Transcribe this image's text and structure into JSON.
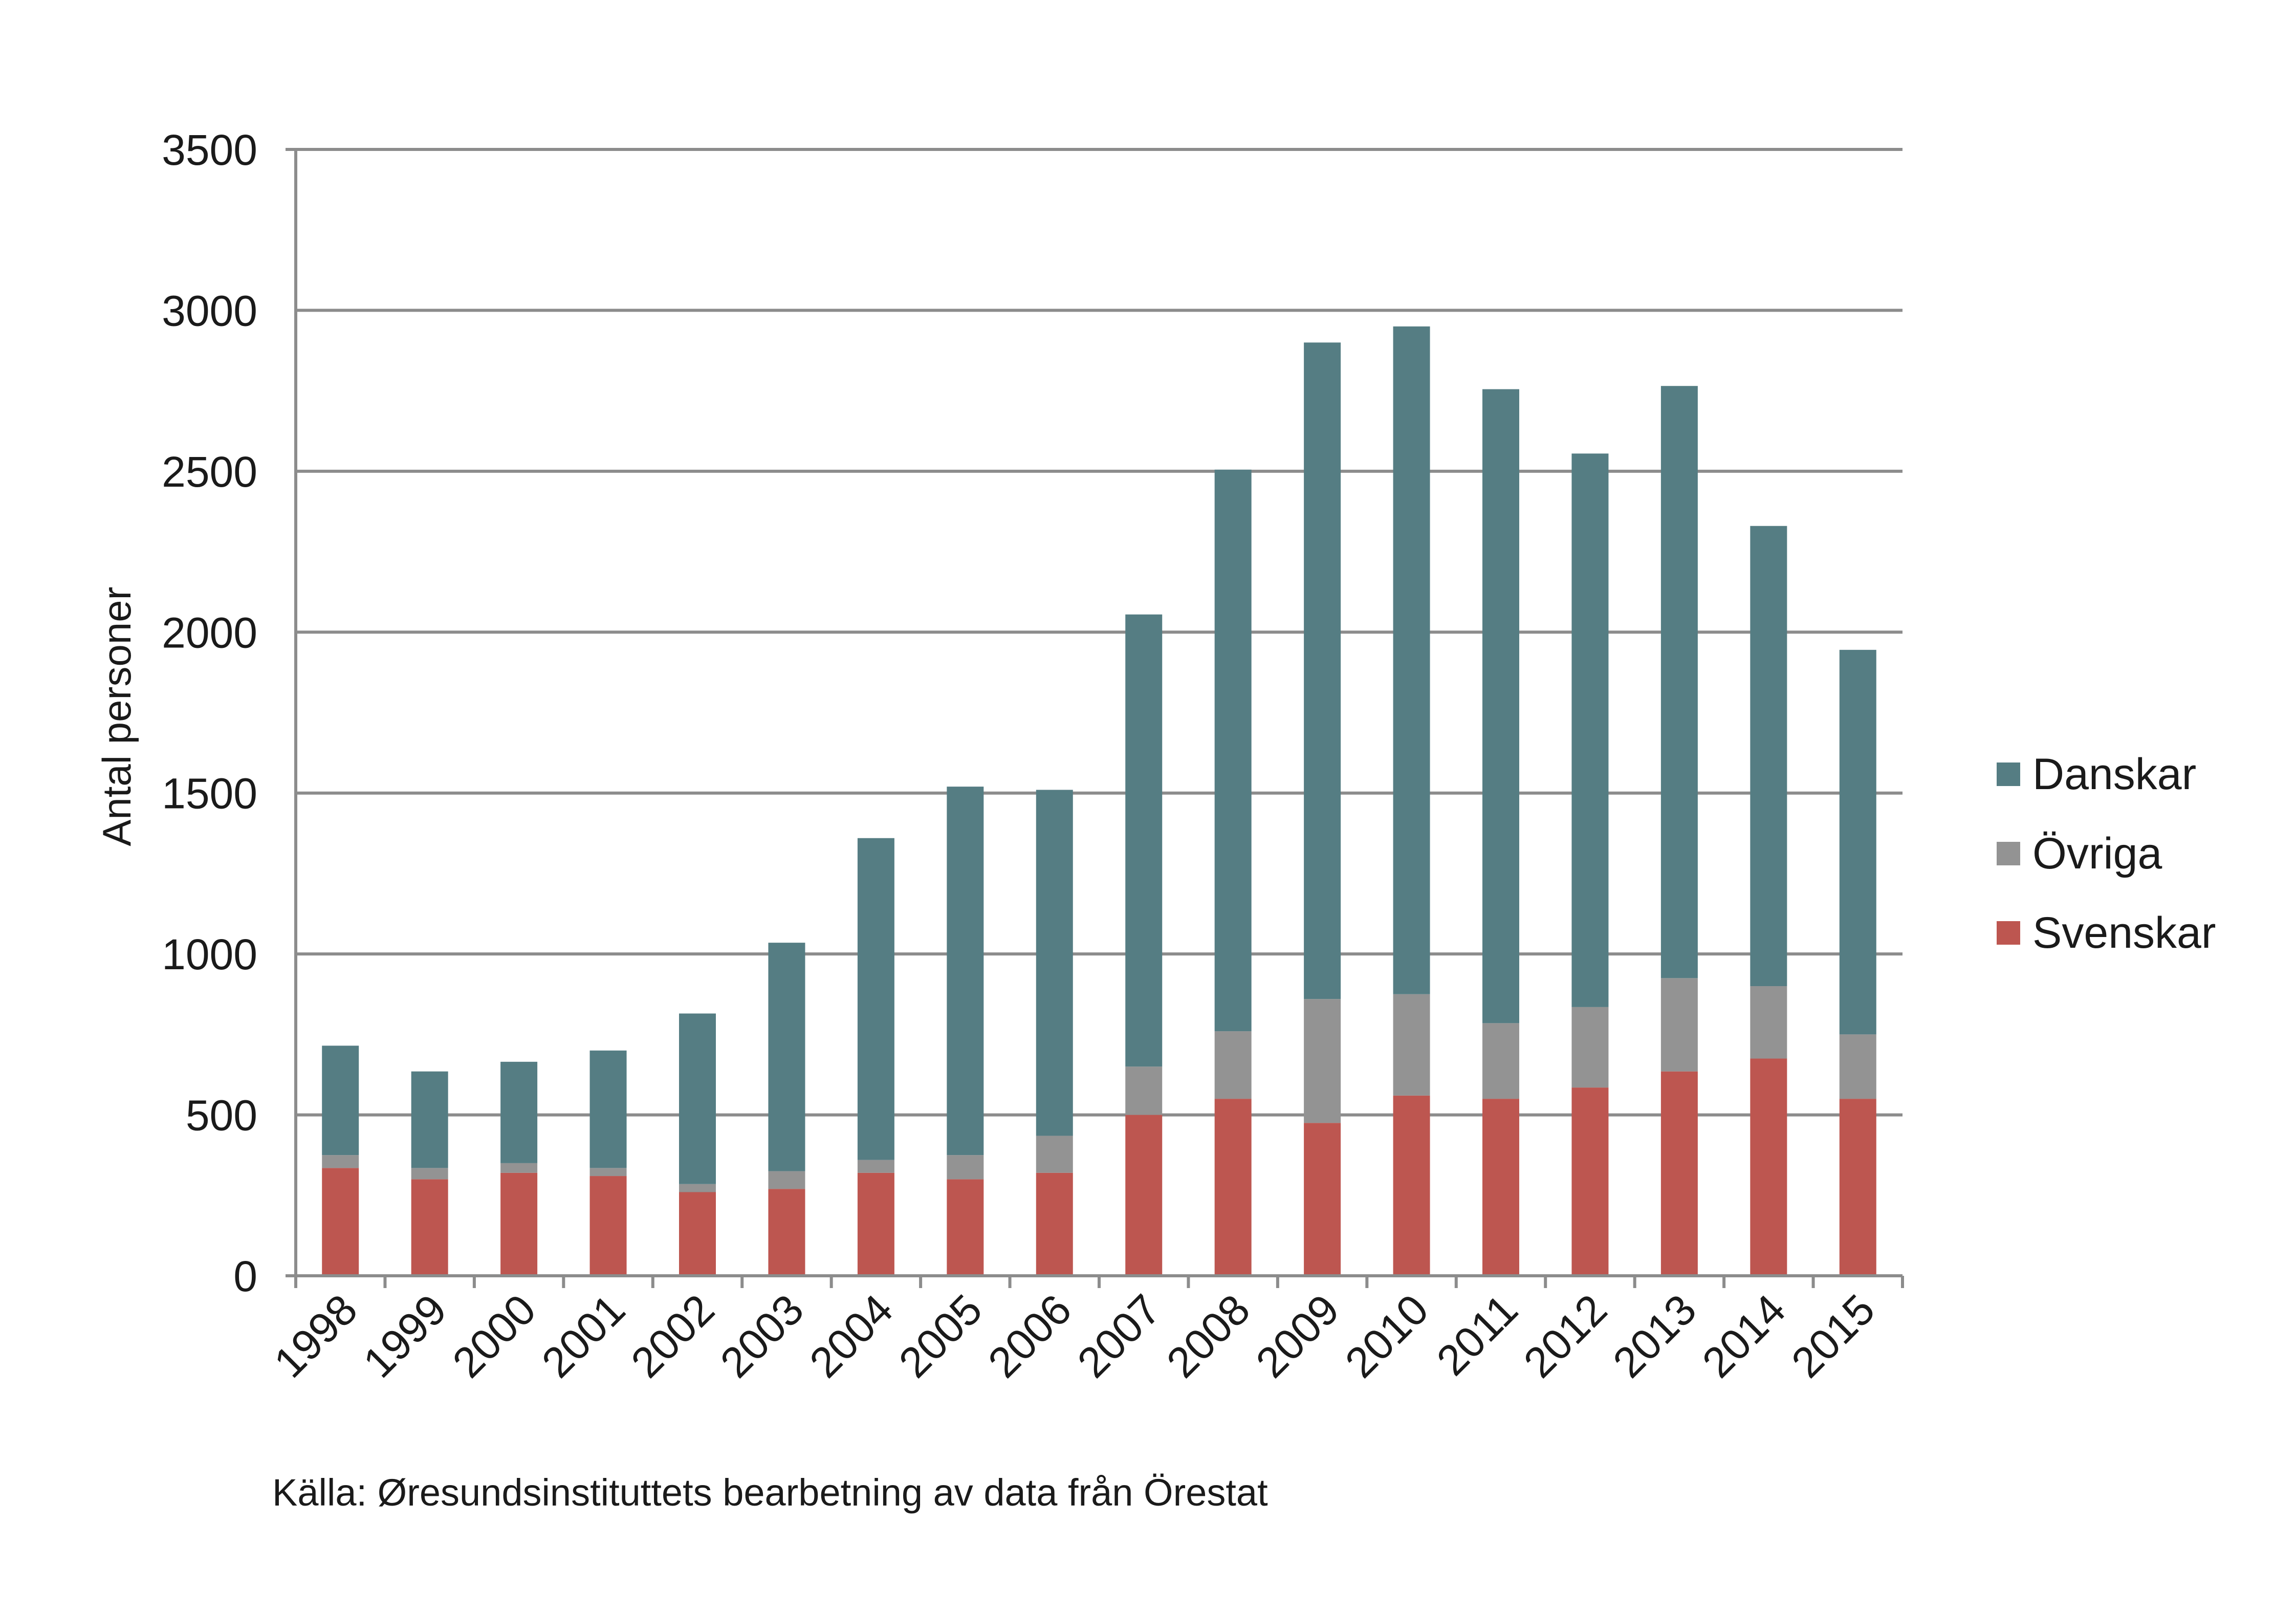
{
  "chart_data": {
    "type": "bar",
    "stacked": true,
    "ylabel": "Antal personer",
    "xlabel": "",
    "ylim": [
      0,
      3500
    ],
    "yticks": [
      0,
      500,
      1000,
      1500,
      2000,
      2500,
      3000,
      3500
    ],
    "grid": true,
    "legend_position": "right",
    "categories": [
      "1998",
      "1999",
      "2000",
      "2001",
      "2002",
      "2003",
      "2004",
      "2005",
      "2006",
      "2007",
      "2008",
      "2009",
      "2010",
      "2011",
      "2012",
      "2013",
      "2014",
      "2015"
    ],
    "series": [
      {
        "name": "Svenskar",
        "color": "#bd5650",
        "values": [
          335,
          300,
          320,
          310,
          260,
          270,
          320,
          300,
          320,
          500,
          550,
          475,
          560,
          550,
          585,
          635,
          675,
          550
        ]
      },
      {
        "name": "Övriga",
        "color": "#939393",
        "values": [
          40,
          35,
          30,
          25,
          25,
          55,
          40,
          75,
          115,
          150,
          210,
          385,
          315,
          235,
          250,
          290,
          225,
          200
        ]
      },
      {
        "name": "Danskar",
        "color": "#557d83",
        "values": [
          340,
          300,
          315,
          365,
          530,
          710,
          1000,
          1145,
          1075,
          1405,
          1745,
          2040,
          2075,
          1970,
          1720,
          1840,
          1430,
          1195
        ]
      }
    ],
    "legend_order": [
      "Danskar",
      "Övriga",
      "Svenskar"
    ],
    "source": "Källa: Øresundsinstituttets bearbetning av data från Örestat"
  }
}
